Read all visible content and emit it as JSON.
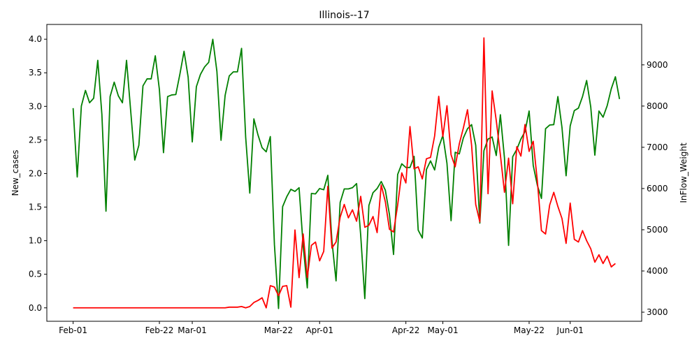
{
  "chart_data": {
    "type": "line",
    "title": "Illinois--17",
    "xlabel": "",
    "ylabel_left": "New_cases",
    "ylabel_right": "InFlow_Weight",
    "x_tick_labels": [
      "Feb-01",
      "Feb-22",
      "Mar-01",
      "Mar-22",
      "Apr-01",
      "Apr-22",
      "May-01",
      "May-22",
      "Jun-01"
    ],
    "x_tick_days": [
      0,
      21,
      29,
      50,
      60,
      81,
      90,
      111,
      121
    ],
    "x_range_days": [
      -6.4,
      138.4
    ],
    "yleft_ticks": [
      0.0,
      0.5,
      1.0,
      1.5,
      2.0,
      2.5,
      3.0,
      3.5,
      4.0
    ],
    "yleft_tick_labels": [
      "0.0",
      "0.5",
      "1.0",
      "1.5",
      "2.0",
      "2.5",
      "3.0",
      "3.5",
      "4.0"
    ],
    "yleft_lim": [
      -0.2,
      4.22
    ],
    "yright_ticks": [
      3000,
      4000,
      5000,
      6000,
      7000,
      8000,
      9000
    ],
    "yright_tick_labels": [
      "3000",
      "4000",
      "5000",
      "6000",
      "7000",
      "8000",
      "9000"
    ],
    "yright_lim": [
      2780,
      9980
    ],
    "grid": false,
    "series": [
      {
        "axis": "left",
        "color": "#ff0000",
        "start_day": 0,
        "values": [
          0,
          0,
          0,
          0,
          0,
          0,
          0,
          0,
          0,
          0,
          0,
          0,
          0,
          0,
          0,
          0,
          0,
          0,
          0,
          0,
          0,
          0,
          0,
          0,
          0,
          0,
          0,
          0,
          0,
          0,
          0,
          0,
          0,
          0,
          0,
          0,
          0,
          0,
          0.01,
          0.01,
          0.01,
          0.02,
          0.0,
          0.02,
          0.08,
          0.11,
          0.15,
          0.0,
          0.33,
          0.31,
          0.18,
          0.32,
          0.33,
          0.01,
          1.16,
          0.45,
          1.1,
          0.45,
          0.93,
          0.98,
          0.7,
          0.84,
          1.81,
          0.89,
          0.98,
          1.35,
          1.54,
          1.34,
          1.46,
          1.29,
          1.66,
          1.2,
          1.23,
          1.36,
          1.12,
          1.83,
          1.58,
          1.17,
          1.13,
          1.53,
          2.01,
          1.86,
          2.7,
          2.07,
          2.1,
          1.92,
          2.22,
          2.24,
          2.56,
          3.15,
          2.55,
          3.01,
          2.28,
          2.1,
          2.44,
          2.68,
          2.95,
          2.42,
          1.54,
          1.28,
          4.02,
          1.7,
          3.23,
          2.79,
          2.28,
          1.72,
          2.23,
          1.55,
          2.4,
          2.26,
          2.73,
          2.33,
          2.48,
          1.89,
          1.15,
          1.1,
          1.53,
          1.72,
          1.51,
          1.33,
          0.96,
          1.56,
          1.02,
          0.98,
          1.15,
          1.0,
          0.88,
          0.68,
          0.79,
          0.66,
          0.77,
          0.61,
          0.66
        ]
      },
      {
        "axis": "right",
        "color": "#008000",
        "start_day": 0,
        "values": [
          7950,
          6280,
          8000,
          8380,
          8080,
          8190,
          9110,
          7800,
          5450,
          8230,
          8580,
          8250,
          8080,
          9110,
          7900,
          6690,
          7050,
          8490,
          8660,
          8660,
          9220,
          8400,
          6870,
          8230,
          8270,
          8280,
          8780,
          9330,
          8700,
          7130,
          8470,
          8770,
          8950,
          9060,
          9620,
          8840,
          7170,
          8260,
          8730,
          8830,
          8830,
          9400,
          7250,
          5890,
          7690,
          7300,
          6990,
          6890,
          7260,
          4640,
          3090,
          5560,
          5800,
          5980,
          5930,
          6020,
          4610,
          3590,
          5880,
          5870,
          6000,
          5970,
          6320,
          4730,
          3760,
          5660,
          5990,
          5990,
          6020,
          6120,
          4870,
          3330,
          5590,
          5900,
          6000,
          6170,
          5960,
          5370,
          4400,
          6340,
          6600,
          6510,
          6510,
          6780,
          4990,
          4800,
          6460,
          6670,
          6450,
          7000,
          7290,
          6610,
          5220,
          6880,
          6840,
          7230,
          7450,
          7550,
          7050,
          5160,
          6920,
          7200,
          7250,
          6800,
          7790,
          6740,
          4620,
          6770,
          6950,
          7200,
          7380,
          7880,
          6560,
          6080,
          5760,
          7450,
          7540,
          7550,
          8230,
          7480,
          6310,
          7520,
          7890,
          7950,
          8230,
          8620,
          7980,
          6810,
          7880,
          7730,
          8010,
          8420,
          8710,
          8170
        ]
      }
    ]
  }
}
